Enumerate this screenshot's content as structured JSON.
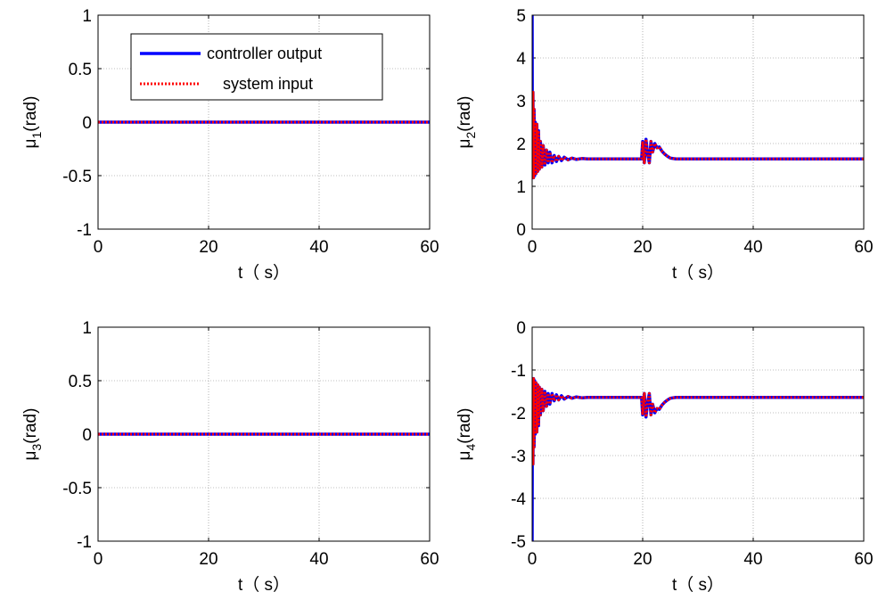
{
  "colors": {
    "controller": "#0000ff",
    "system": "#ff0000",
    "grid": "#808080",
    "axes": "#000000"
  },
  "legend": {
    "placement": "top-left",
    "entries": [
      {
        "label": "controller output",
        "style": "solid",
        "color": "#0000ff"
      },
      {
        "label": "system input",
        "style": "dotted",
        "color": "#ff0000"
      }
    ]
  },
  "chart_data": [
    {
      "type": "line",
      "id": "mu1",
      "ylabel": {
        "base": "μ",
        "sub": "1",
        "unit": "(rad)"
      },
      "xlabel": "t（  s）",
      "xlim": [
        0,
        60
      ],
      "ylim": [
        -1,
        1
      ],
      "xticks": [
        0,
        20,
        40,
        60
      ],
      "xtick_labels": [
        "0",
        "20",
        "40",
        "60"
      ],
      "yticks": [
        -1,
        -0.5,
        0,
        0.5,
        1
      ],
      "ytick_labels": [
        "-1",
        "-0.5",
        "0",
        "0.5",
        "1"
      ],
      "grid": true,
      "has_legend": true,
      "series": [
        {
          "name": "controller output",
          "x": [
            0,
            60
          ],
          "y": [
            0,
            0
          ]
        },
        {
          "name": "system input",
          "x": [
            0,
            60
          ],
          "y": [
            0,
            0
          ]
        }
      ]
    },
    {
      "type": "line",
      "id": "mu2",
      "ylabel": {
        "base": "μ",
        "sub": "2",
        "unit": "(rad)"
      },
      "xlabel": "t（  s）",
      "xlim": [
        0,
        60
      ],
      "ylim": [
        0,
        5
      ],
      "xticks": [
        0,
        20,
        40,
        60
      ],
      "xtick_labels": [
        "0",
        "20",
        "40",
        "60"
      ],
      "yticks": [
        0,
        1,
        2,
        3,
        4,
        5
      ],
      "ytick_labels": [
        "0",
        "1",
        "2",
        "3",
        "4",
        "5"
      ],
      "grid": true,
      "has_legend": false,
      "series": [
        {
          "name": "controller output",
          "x": [
            0,
            0.05,
            0.15,
            0.25,
            0.35,
            0.45,
            0.55,
            0.7,
            0.85,
            1.0,
            1.15,
            1.3,
            1.5,
            1.75,
            2.0,
            2.3,
            2.6,
            2.9,
            3.2,
            3.6,
            4.0,
            4.4,
            4.8,
            5.3,
            5.8,
            6.5,
            7.2,
            8.0,
            9.0,
            10.0,
            12.0,
            15.0,
            19.8,
            20.0,
            20.3,
            20.6,
            20.9,
            21.2,
            21.5,
            21.8,
            22.2,
            22.6,
            23.0,
            23.5,
            24.0,
            24.5,
            25.0,
            26.0,
            30.0,
            40.0,
            50.0,
            60.0
          ],
          "y": [
            5.0,
            1.2,
            3.2,
            1.2,
            2.8,
            1.25,
            2.5,
            1.3,
            2.45,
            1.35,
            2.3,
            1.4,
            2.05,
            1.45,
            1.95,
            1.5,
            1.85,
            1.55,
            1.8,
            1.55,
            1.72,
            1.58,
            1.7,
            1.6,
            1.68,
            1.62,
            1.66,
            1.63,
            1.65,
            1.64,
            1.64,
            1.64,
            1.64,
            2.05,
            1.55,
            2.1,
            1.75,
            1.55,
            2.05,
            1.8,
            2.0,
            1.9,
            1.92,
            1.82,
            1.75,
            1.7,
            1.66,
            1.64,
            1.64,
            1.64,
            1.64,
            1.64
          ]
        },
        {
          "name": "system input",
          "x": [
            0,
            0.05,
            0.15,
            0.25,
            0.35,
            0.45,
            0.55,
            0.7,
            0.85,
            1.0,
            1.15,
            1.3,
            1.5,
            1.75,
            2.0,
            2.3,
            2.6,
            2.9,
            3.2,
            3.6,
            4.0,
            4.4,
            4.8,
            5.3,
            5.8,
            6.5,
            7.2,
            8.0,
            9.0,
            10.0,
            12.0,
            15.0,
            19.8,
            20.0,
            20.3,
            20.6,
            20.9,
            21.2,
            21.5,
            21.8,
            22.2,
            22.6,
            23.0,
            23.5,
            24.0,
            24.5,
            25.0,
            26.0,
            30.0,
            40.0,
            50.0,
            60.0
          ],
          "y": [
            3.2,
            1.2,
            3.2,
            1.2,
            2.8,
            1.25,
            2.5,
            1.3,
            2.45,
            1.35,
            2.3,
            1.4,
            2.05,
            1.45,
            1.95,
            1.5,
            1.85,
            1.55,
            1.8,
            1.55,
            1.72,
            1.58,
            1.7,
            1.6,
            1.68,
            1.62,
            1.66,
            1.63,
            1.65,
            1.64,
            1.64,
            1.64,
            1.64,
            2.05,
            1.55,
            2.1,
            1.75,
            1.55,
            2.05,
            1.8,
            2.0,
            1.9,
            1.92,
            1.82,
            1.75,
            1.7,
            1.66,
            1.64,
            1.64,
            1.64,
            1.64,
            1.64
          ]
        }
      ]
    },
    {
      "type": "line",
      "id": "mu3",
      "ylabel": {
        "base": "μ",
        "sub": "3",
        "unit": "(rad)"
      },
      "xlabel": "t（  s）",
      "xlim": [
        0,
        60
      ],
      "ylim": [
        -1,
        1
      ],
      "xticks": [
        0,
        20,
        40,
        60
      ],
      "xtick_labels": [
        "0",
        "20",
        "40",
        "60"
      ],
      "yticks": [
        -1,
        -0.5,
        0,
        0.5,
        1
      ],
      "ytick_labels": [
        "-1",
        "-0.5",
        "0",
        "0.5",
        "1"
      ],
      "grid": true,
      "has_legend": false,
      "series": [
        {
          "name": "controller output",
          "x": [
            0,
            60
          ],
          "y": [
            0,
            0
          ]
        },
        {
          "name": "system input",
          "x": [
            0,
            60
          ],
          "y": [
            0,
            0
          ]
        }
      ]
    },
    {
      "type": "line",
      "id": "mu4",
      "ylabel": {
        "base": "μ",
        "sub": "4",
        "unit": "(rad)"
      },
      "xlabel": "t（  s）",
      "xlim": [
        0,
        60
      ],
      "ylim": [
        -5,
        0
      ],
      "xticks": [
        0,
        20,
        40,
        60
      ],
      "xtick_labels": [
        "0",
        "20",
        "40",
        "60"
      ],
      "yticks": [
        -5,
        -4,
        -3,
        -2,
        -1,
        0
      ],
      "ytick_labels": [
        "-5",
        "-4",
        "-3",
        "-2",
        "-1",
        "0"
      ],
      "grid": true,
      "has_legend": false,
      "series": [
        {
          "name": "controller output",
          "x": [
            0,
            0.05,
            0.15,
            0.25,
            0.35,
            0.45,
            0.55,
            0.7,
            0.85,
            1.0,
            1.15,
            1.3,
            1.5,
            1.75,
            2.0,
            2.3,
            2.6,
            2.9,
            3.2,
            3.6,
            4.0,
            4.4,
            4.8,
            5.3,
            5.8,
            6.5,
            7.2,
            8.0,
            9.0,
            10.0,
            12.0,
            15.0,
            19.8,
            20.0,
            20.3,
            20.6,
            20.9,
            21.2,
            21.5,
            21.8,
            22.2,
            22.6,
            23.0,
            23.5,
            24.0,
            24.5,
            25.0,
            26.0,
            30.0,
            40.0,
            50.0,
            60.0
          ],
          "y": [
            -5.0,
            -1.2,
            -3.2,
            -1.2,
            -2.8,
            -1.25,
            -2.5,
            -1.3,
            -2.45,
            -1.35,
            -2.3,
            -1.4,
            -2.05,
            -1.45,
            -1.95,
            -1.5,
            -1.85,
            -1.55,
            -1.8,
            -1.55,
            -1.72,
            -1.58,
            -1.7,
            -1.6,
            -1.68,
            -1.62,
            -1.66,
            -1.63,
            -1.65,
            -1.64,
            -1.64,
            -1.64,
            -1.64,
            -2.05,
            -1.55,
            -2.1,
            -1.75,
            -1.55,
            -2.05,
            -1.8,
            -2.0,
            -1.9,
            -1.92,
            -1.82,
            -1.75,
            -1.7,
            -1.66,
            -1.64,
            -1.64,
            -1.64,
            -1.64,
            -1.64
          ]
        },
        {
          "name": "system input",
          "x": [
            0,
            0.05,
            0.15,
            0.25,
            0.35,
            0.45,
            0.55,
            0.7,
            0.85,
            1.0,
            1.15,
            1.3,
            1.5,
            1.75,
            2.0,
            2.3,
            2.6,
            2.9,
            3.2,
            3.6,
            4.0,
            4.4,
            4.8,
            5.3,
            5.8,
            6.5,
            7.2,
            8.0,
            9.0,
            10.0,
            12.0,
            15.0,
            19.8,
            20.0,
            20.3,
            20.6,
            20.9,
            21.2,
            21.5,
            21.8,
            22.2,
            22.6,
            23.0,
            23.5,
            24.0,
            24.5,
            25.0,
            26.0,
            30.0,
            40.0,
            50.0,
            60.0
          ],
          "y": [
            -3.2,
            -1.2,
            -3.2,
            -1.2,
            -2.8,
            -1.25,
            -2.5,
            -1.3,
            -2.45,
            -1.35,
            -2.3,
            -1.4,
            -2.05,
            -1.45,
            -1.95,
            -1.5,
            -1.85,
            -1.55,
            -1.8,
            -1.55,
            -1.72,
            -1.58,
            -1.7,
            -1.6,
            -1.68,
            -1.62,
            -1.66,
            -1.63,
            -1.65,
            -1.64,
            -1.64,
            -1.64,
            -1.64,
            -2.05,
            -1.55,
            -2.1,
            -1.75,
            -1.55,
            -2.05,
            -1.8,
            -2.0,
            -1.9,
            -1.92,
            -1.82,
            -1.75,
            -1.7,
            -1.66,
            -1.64,
            -1.64,
            -1.64,
            -1.64,
            -1.64
          ]
        }
      ]
    }
  ]
}
